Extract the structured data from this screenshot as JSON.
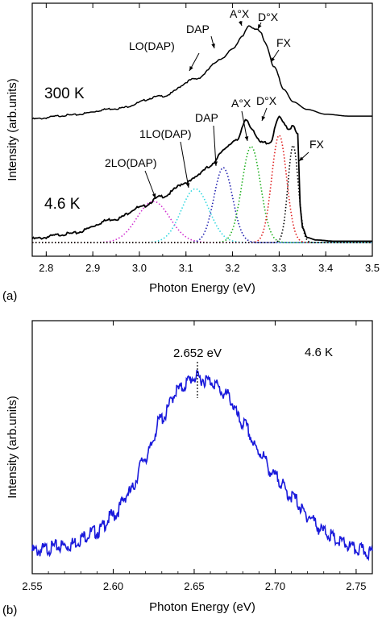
{
  "chart_data": [
    {
      "panel_label": "(a)",
      "type": "line",
      "xlabel": "Photon Energy (eV)",
      "ylabel": "Intensity (arb.units)",
      "xlim": [
        2.77,
        3.5
      ],
      "xticks": [
        "2.8",
        "2.9",
        "3.0",
        "3.1",
        "3.2",
        "3.3",
        "3.4",
        "3.5"
      ],
      "temperature_labels": [
        "300 K",
        "4.6 K"
      ],
      "series": [
        {
          "name": "300 K",
          "x": [
            2.77,
            2.85,
            2.95,
            3.05,
            3.12,
            3.18,
            3.2,
            3.22,
            3.235,
            3.25,
            3.26,
            3.27,
            3.29,
            3.31,
            3.33,
            3.36,
            3.4,
            3.45,
            3.5
          ],
          "y": [
            0.02,
            0.06,
            0.13,
            0.26,
            0.44,
            0.66,
            0.76,
            0.88,
            1.0,
            0.97,
            0.93,
            0.82,
            0.56,
            0.33,
            0.2,
            0.12,
            0.07,
            0.05,
            0.05
          ]
        },
        {
          "name": "4.6 K",
          "x": [
            2.77,
            2.85,
            2.95,
            3.0,
            3.05,
            3.1,
            3.15,
            3.18,
            3.21,
            3.23,
            3.24,
            3.26,
            3.28,
            3.3,
            3.31,
            3.32,
            3.33,
            3.34,
            3.345,
            3.35,
            3.36,
            3.38,
            3.42,
            3.5
          ],
          "y": [
            0.03,
            0.07,
            0.19,
            0.28,
            0.37,
            0.48,
            0.6,
            0.74,
            0.83,
            0.98,
            0.92,
            0.8,
            0.8,
            1.0,
            0.96,
            0.91,
            0.93,
            0.86,
            0.3,
            0.12,
            0.04,
            0.02,
            0.01,
            0.01
          ]
        }
      ],
      "fit_components": [
        {
          "label": "2LO(DAP)",
          "center": 3.03,
          "amplitude": 0.33,
          "color": "#d030d0"
        },
        {
          "label": "1LO(DAP)",
          "center": 3.12,
          "amplitude": 0.43,
          "color": "#30d8e0"
        },
        {
          "label": "DAP",
          "center": 3.18,
          "amplitude": 0.6,
          "color": "#2020b0"
        },
        {
          "label": "A°X",
          "center": 3.24,
          "amplitude": 0.77,
          "color": "#20b020"
        },
        {
          "label": "D°X",
          "center": 3.3,
          "amplitude": 0.86,
          "color": "#e02020"
        },
        {
          "label": "FX",
          "center": 3.33,
          "amplitude": 0.78,
          "color": "#000000"
        }
      ],
      "annotations_300K": [
        "LO(DAP)",
        "DAP",
        "A°X",
        "D°X",
        "FX"
      ],
      "annotations_46K": [
        "2LO(DAP)",
        "1LO(DAP)",
        "DAP",
        "A°X",
        "D°X",
        "FX"
      ]
    },
    {
      "panel_label": "(b)",
      "type": "line",
      "xlabel": "Photon Energy (eV)",
      "ylabel": "Intensity (arb.units)",
      "xlim": [
        2.55,
        2.76
      ],
      "xticks": [
        "2.55",
        "2.60",
        "2.65",
        "2.70",
        "2.75"
      ],
      "temperature_label": "4.6 K",
      "peak_label": "2.652 eV",
      "peak_x": 2.652,
      "series": [
        {
          "name": "4.6 K",
          "color": "#1a1adb",
          "x": [
            2.55,
            2.57,
            2.59,
            2.6,
            2.61,
            2.62,
            2.63,
            2.64,
            2.65,
            2.66,
            2.67,
            2.68,
            2.69,
            2.7,
            2.71,
            2.72,
            2.73,
            2.74,
            2.75,
            2.76
          ],
          "y": [
            0.02,
            0.05,
            0.13,
            0.22,
            0.35,
            0.55,
            0.77,
            0.93,
            1.0,
            0.98,
            0.9,
            0.74,
            0.58,
            0.44,
            0.33,
            0.22,
            0.13,
            0.07,
            0.03,
            0.01
          ]
        }
      ]
    }
  ]
}
